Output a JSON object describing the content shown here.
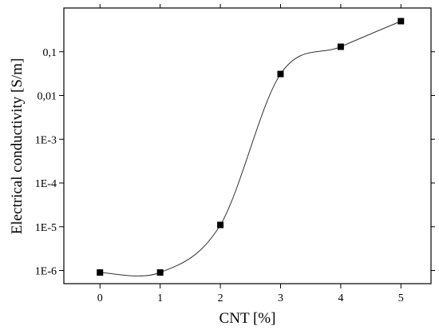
{
  "chart_data": {
    "type": "scatter",
    "title": "",
    "xlabel": "CNT [%]",
    "ylabel": "Electrical conductivity [S/m]",
    "x_scale": "linear",
    "y_scale": "log",
    "xlim": [
      -0.6,
      5.5
    ],
    "ylim": [
      5e-07,
      1.0
    ],
    "x_ticks": [
      0,
      1,
      2,
      3,
      4,
      5
    ],
    "x_tick_labels": [
      "0",
      "1",
      "2",
      "3",
      "4",
      "5"
    ],
    "y_ticks": [
      1e-06,
      1e-05,
      0.0001,
      0.001,
      0.01,
      0.1
    ],
    "y_tick_labels": [
      "1E-6",
      "1E-5",
      "1E-4",
      "1E-3",
      "0,01",
      "0,1"
    ],
    "grid": false,
    "legend": "none",
    "series": [
      {
        "marker": "square",
        "color": "#000000",
        "line": "smooth spline through points",
        "x": [
          0,
          1,
          2,
          3,
          4,
          5
        ],
        "y": [
          9e-07,
          9e-07,
          1.1e-05,
          0.031,
          0.13,
          0.5
        ]
      }
    ]
  }
}
